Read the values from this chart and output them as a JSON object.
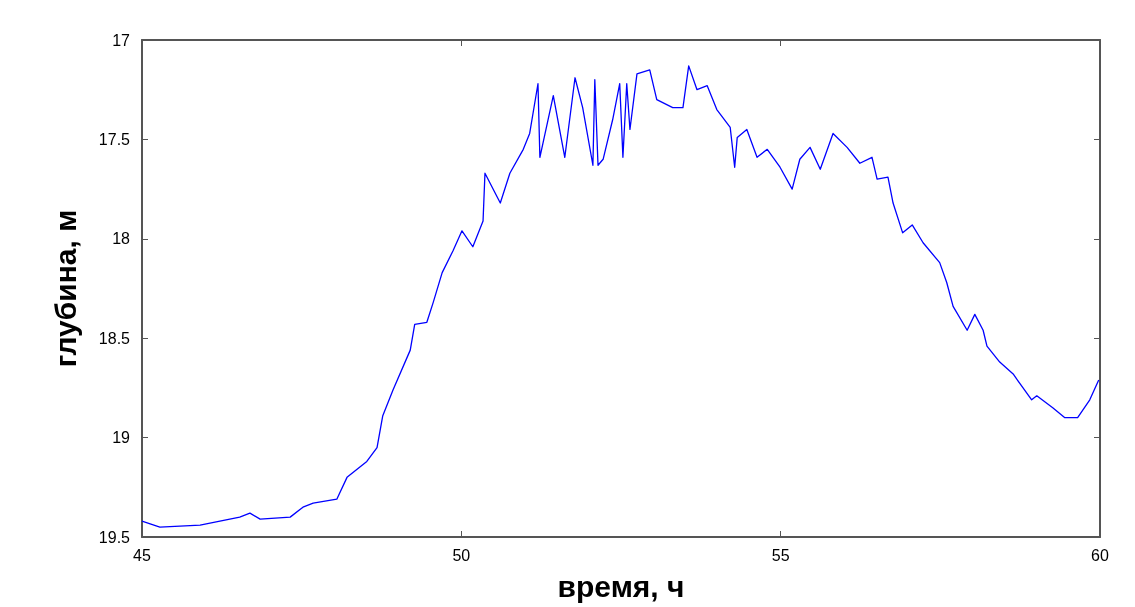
{
  "chart_data": {
    "type": "line",
    "xlabel": "время, ч",
    "ylabel": "глубина, м",
    "xlim": [
      45,
      60
    ],
    "xticks": [
      45,
      50,
      55,
      60
    ],
    "ylim": [
      19.5,
      17
    ],
    "yticks": [
      17,
      17.5,
      18,
      18.5,
      19,
      19.5
    ],
    "grid": false,
    "marker": "none",
    "line_style": "solid",
    "series": [
      {
        "color": "#0000ff",
        "x": [
          45,
          45.28,
          45.91,
          46.53,
          46.69,
          46.85,
          47.32,
          47.52,
          47.68,
          48.05,
          48.21,
          48.52,
          48.68,
          48.77,
          48.93,
          49.2,
          49.27,
          49.46,
          49.56,
          49.7,
          49.87,
          50.01,
          50.18,
          50.34,
          50.37,
          50.61,
          50.76,
          50.97,
          51.07,
          51.2,
          51.23,
          51.44,
          51.62,
          51.78,
          51.9,
          52.06,
          52.09,
          52.14,
          52.22,
          52.37,
          52.48,
          52.53,
          52.59,
          52.64,
          52.75,
          52.95,
          53.06,
          53.31,
          53.47,
          53.56,
          53.69,
          53.85,
          54.0,
          54.21,
          54.28,
          54.32,
          54.47,
          54.63,
          54.79,
          54.99,
          55.18,
          55.3,
          55.46,
          55.62,
          55.82,
          56.04,
          56.24,
          56.43,
          56.51,
          56.68,
          56.76,
          56.91,
          57.06,
          57.23,
          57.49,
          57.6,
          57.7,
          57.92,
          58.04,
          58.17,
          58.23,
          58.43,
          58.64,
          58.75,
          58.93,
          59.01,
          59.26,
          59.45,
          59.65,
          59.84,
          59.98
        ],
        "values": [
          19.42,
          19.45,
          19.44,
          19.4,
          19.38,
          19.41,
          19.4,
          19.35,
          19.33,
          19.31,
          19.2,
          19.12,
          19.05,
          18.89,
          18.76,
          18.56,
          18.43,
          18.42,
          18.32,
          18.17,
          18.06,
          17.96,
          18.04,
          17.91,
          17.67,
          17.82,
          17.67,
          17.55,
          17.47,
          17.22,
          17.59,
          17.28,
          17.59,
          17.19,
          17.34,
          17.63,
          17.2,
          17.63,
          17.6,
          17.4,
          17.22,
          17.59,
          17.22,
          17.45,
          17.17,
          17.15,
          17.3,
          17.34,
          17.34,
          17.13,
          17.25,
          17.23,
          17.35,
          17.44,
          17.64,
          17.49,
          17.45,
          17.59,
          17.55,
          17.64,
          17.75,
          17.6,
          17.54,
          17.65,
          17.47,
          17.54,
          17.62,
          17.59,
          17.7,
          17.69,
          17.82,
          17.97,
          17.93,
          18.02,
          18.12,
          18.22,
          18.34,
          18.46,
          18.38,
          18.46,
          18.54,
          18.62,
          18.68,
          18.73,
          18.81,
          18.79,
          18.85,
          18.9,
          18.9,
          18.81,
          18.71
        ]
      }
    ]
  }
}
